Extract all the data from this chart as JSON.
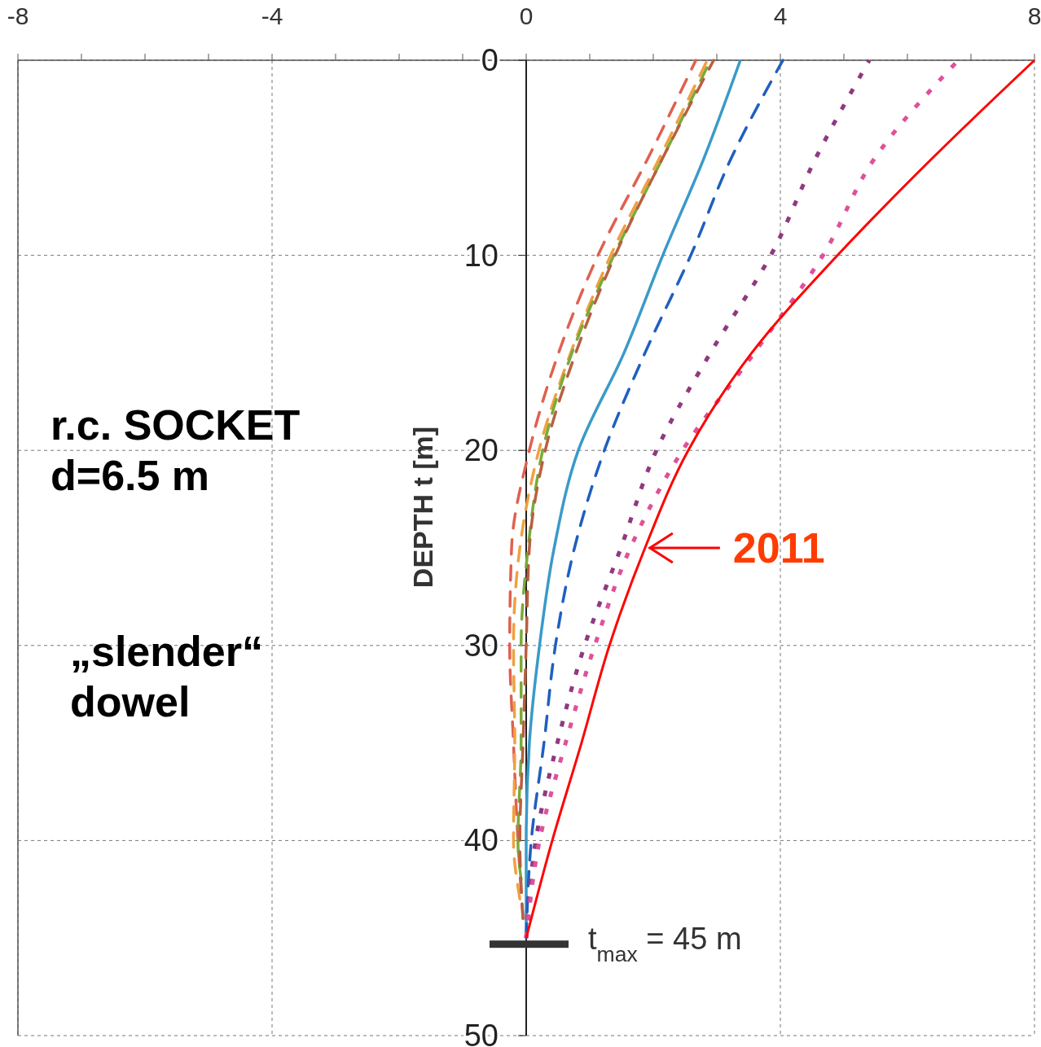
{
  "chart_data": {
    "type": "line",
    "ylabel": "DEPTH t [m]",
    "xlim": [
      -8,
      8
    ],
    "ylim": [
      50,
      0
    ],
    "xticks": [
      -8,
      {
        "value": -7,
        "label": null
      },
      {
        "value": -6,
        "label": null
      },
      {
        "value": -5,
        "label": null
      },
      -4,
      {
        "value": -3,
        "label": null
      },
      {
        "value": -2,
        "label": null
      },
      {
        "value": -1,
        "label": null
      },
      0,
      {
        "value": 1,
        "label": null
      },
      {
        "value": 2,
        "label": null
      },
      {
        "value": 3,
        "label": null
      },
      4,
      {
        "value": 5,
        "label": null
      },
      {
        "value": 6,
        "label": null
      },
      {
        "value": 7,
        "label": null
      },
      8
    ],
    "yticks": [
      0,
      10,
      20,
      30,
      40,
      50
    ],
    "grid": true,
    "marker": "none",
    "series": [
      {
        "color": "#e06050",
        "line_style": "dashed",
        "x": [
          2.67,
          1.92,
          1.13,
          0.51,
          0.05,
          -0.23,
          -0.26,
          -0.2,
          -0.13,
          -0.05
        ],
        "values": [
          0,
          5,
          10,
          15,
          20,
          25,
          30,
          35,
          40,
          44
        ]
      },
      {
        "color": "#f0a040",
        "line_style": "dashed",
        "x": [
          2.85,
          2.1,
          1.33,
          0.7,
          0.2,
          -0.1,
          -0.2,
          -0.18,
          -0.2,
          -0.1
        ],
        "values": [
          0,
          5,
          10,
          15,
          20,
          25,
          30,
          35,
          40,
          43
        ]
      },
      {
        "color": "#7aaa3a",
        "line_style": "dashed",
        "x": [
          2.9,
          2.15,
          1.38,
          0.72,
          0.26,
          0.03,
          -0.08,
          -0.08,
          -0.13,
          -0.08
        ],
        "values": [
          0,
          5,
          10,
          15,
          20,
          25,
          30,
          35,
          40,
          42
        ]
      },
      {
        "color": "#b86040",
        "line_style": "dashed",
        "x": [
          2.95,
          2.15,
          1.4,
          0.78,
          0.3,
          0.05,
          0,
          -0.05,
          -0.1,
          -0.05
        ],
        "values": [
          0,
          5,
          10,
          15,
          20,
          25,
          30,
          35,
          40,
          44
        ]
      },
      {
        "color": "#3a9ac8",
        "line_style": "solid",
        "x": [
          3.37,
          2.8,
          2.15,
          1.54,
          0.82,
          0.44,
          0.21,
          0.05,
          0,
          0
        ],
        "values": [
          0,
          5,
          10,
          15,
          20,
          25,
          30,
          35,
          40,
          45
        ]
      },
      {
        "color": "#1f5fbf",
        "line_style": "dashed",
        "x": [
          4.04,
          3.23,
          2.59,
          1.87,
          1.23,
          0.76,
          0.46,
          0.28,
          0.08,
          0
        ],
        "values": [
          0,
          5,
          10,
          15,
          20,
          25,
          30,
          35,
          40,
          45
        ]
      },
      {
        "color": "#8e3a80",
        "line_style": "dotted",
        "x": [
          5.4,
          4.56,
          3.85,
          2.9,
          2.05,
          1.49,
          0.92,
          0.49,
          0.15,
          0
        ],
        "values": [
          0,
          5,
          10,
          15,
          20,
          25,
          30,
          35,
          40,
          45
        ]
      },
      {
        "color": "#e0509a",
        "line_style": "dotted",
        "x": [
          6.8,
          5.49,
          4.67,
          3.59,
          2.46,
          1.64,
          1.08,
          0.62,
          0.21,
          0
        ],
        "values": [
          0,
          5,
          10,
          15,
          20,
          25,
          30,
          35,
          40,
          45
        ]
      },
      {
        "color": "#ff0000",
        "line_style": "solid",
        "x": [
          8,
          6.4,
          4.9,
          3.55,
          2.55,
          1.87,
          1.31,
          0.87,
          0.41,
          0
        ],
        "values": [
          0,
          5,
          10,
          15,
          20,
          25,
          30,
          35,
          40,
          45
        ]
      }
    ],
    "annotations": [
      "r.c. SOCKET\nd=6.5 m",
      "„slender“\ndowel",
      {
        "text": "2011",
        "x": 1.87,
        "y": 25
      },
      {
        "text": "t$_{max}$ = 45 m",
        "x": 0,
        "y": 45
      }
    ]
  }
}
